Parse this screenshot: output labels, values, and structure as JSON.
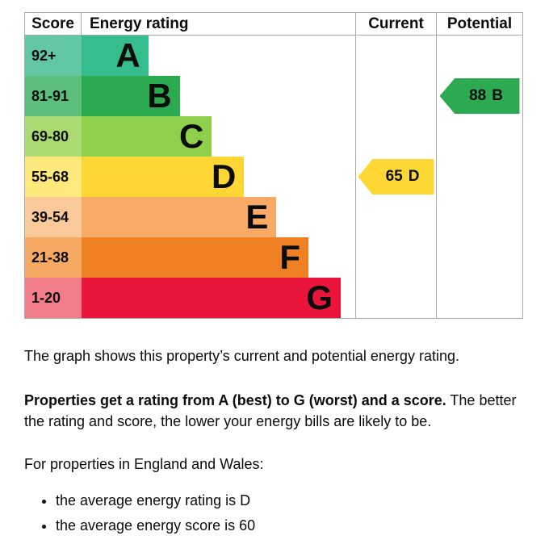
{
  "chart_data": {
    "type": "bar",
    "title": "Energy rating chart",
    "columns": [
      "Score",
      "Energy rating",
      "Current",
      "Potential"
    ],
    "bands": [
      {
        "letter": "A",
        "score": "92+",
        "color": "#35bd8d",
        "tint_color": "#61c7a5"
      },
      {
        "letter": "B",
        "score": "81-91",
        "color": "#2caa50",
        "tint_color": "#5cbf7b"
      },
      {
        "letter": "C",
        "score": "69-80",
        "color": "#8ecf4b",
        "tint_color": "#aadb73"
      },
      {
        "letter": "D",
        "score": "55-68",
        "color": "#ffd735",
        "tint_color": "#ffe97d"
      },
      {
        "letter": "E",
        "score": "39-54",
        "color": "#f9aa67",
        "tint_color": "#fbca9b"
      },
      {
        "letter": "F",
        "score": "21-38",
        "color": "#ef8023",
        "tint_color": "#f5a963"
      },
      {
        "letter": "G",
        "score": "1-20",
        "color": "#e9153b",
        "tint_color": "#f27d8b"
      }
    ],
    "current": {
      "value": 65,
      "band": "D",
      "color": "#ffd735"
    },
    "potential": {
      "value": 88,
      "band": "B",
      "color": "#2caa50"
    }
  },
  "body": {
    "para1": "The graph shows this property’s current and potential energy rating.",
    "para2_bold": "Properties get a rating from A (best) to G (worst) and a score.",
    "para2_rest": " The better the rating and score, the lower your energy bills are likely to be.",
    "para3": "For properties in England and Wales:",
    "bullets": [
      "the average energy rating is D",
      "the average energy score is 60"
    ]
  }
}
